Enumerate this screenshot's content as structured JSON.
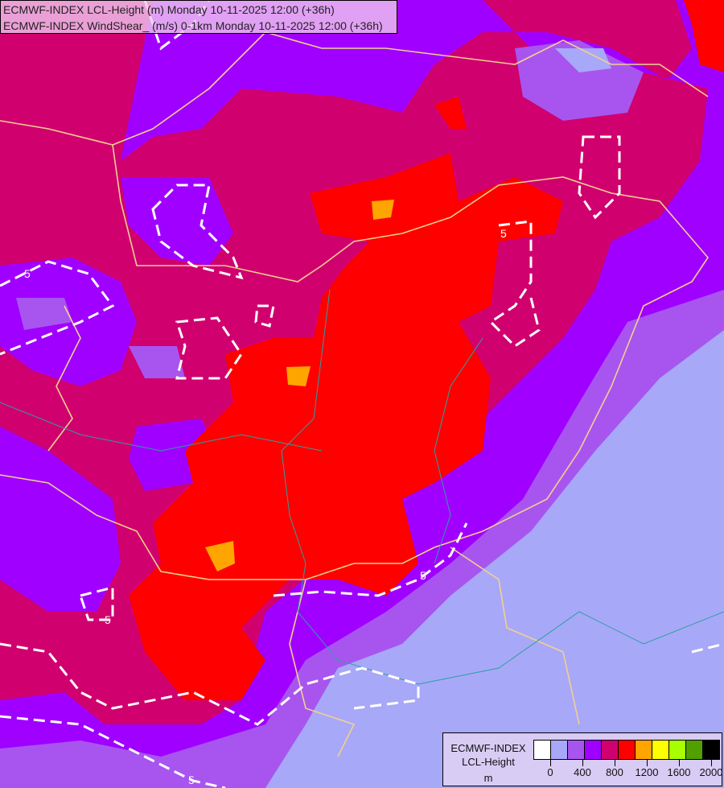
{
  "header": {
    "line1": "ECMWF-INDEX LCL-Height (m) Monday 10-11-2025 12:00 (+36h)",
    "line2": "ECMWF-INDEX WindShear_ (m/s) 0-1km Monday 10-11-2025 12:00 (+36h)"
  },
  "map": {
    "contour_label": "5"
  },
  "legend": {
    "title_line1": "ECMWF-INDEX",
    "title_line2": "LCL-Height",
    "unit": "m",
    "colors": [
      "#ffffff",
      "#a8a8f8",
      "#a855f0",
      "#a000ff",
      "#d0006f",
      "#ff0000",
      "#ffa500",
      "#ffff00",
      "#a8ff00",
      "#50a000",
      "#000000"
    ],
    "ticks": [
      "0",
      "400",
      "800",
      "1200",
      "1600",
      "2000"
    ]
  }
}
